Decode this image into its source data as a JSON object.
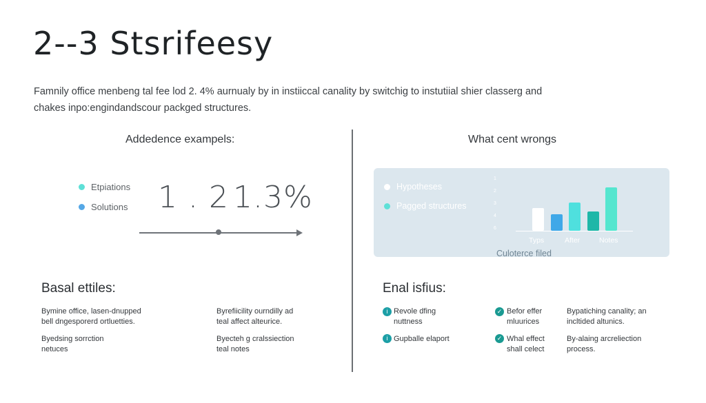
{
  "header": {
    "title": "2--3 Stsrifeesy",
    "subtitle": "Famnily office menbeng tal fee lod 2. 4% aurnualy by in instiiccal canality by switchig to instutiial shier classerg and chakes inpo:engindandscour packged structures."
  },
  "left": {
    "heading": "Addedence exampels:",
    "legend": [
      {
        "label": "Etpiations",
        "color": "#5ee0d7"
      },
      {
        "label": "Solutions",
        "color": "#55a8e6"
      }
    ],
    "values": [
      "1 . 2",
      "1.3%"
    ]
  },
  "right": {
    "heading": "What cent wrongs",
    "chart_data": {
      "type": "bar",
      "legend": [
        {
          "label": "Hypotheses",
          "color": "#ffffff"
        },
        {
          "label": "Pagged structures",
          "color": "#5ee0d7"
        }
      ],
      "y_ticks": [
        "1",
        "2",
        "3",
        "4",
        "6"
      ],
      "categories": [
        "Typs",
        "After",
        "Notes"
      ],
      "bars": [
        {
          "value": 1.8,
          "color": "#ffffff"
        },
        {
          "value": 1.3,
          "color": "#3fa8e8"
        },
        {
          "value": 2.2,
          "color": "#4fe0de"
        },
        {
          "value": 1.5,
          "color": "#1fb7a8"
        },
        {
          "value": 3.4,
          "color": "#55e6cf"
        }
      ],
      "ylim": [
        0,
        3.8
      ],
      "caption": "Culoterce filed"
    }
  },
  "bottom_left": {
    "heading": "Basal ettiles:",
    "items": [
      "Bymine office, lasen-dnupped\nbell dngesporerd ortluetties.",
      "Byrefiicility ourndilly ad\nteal affect alteurice.",
      "Byedsing sorrction\nnetuces",
      "Byecteh g cralssiection\nteal notes"
    ]
  },
  "bottom_right": {
    "heading": "Enal isfius:",
    "items": [
      {
        "text": "Revole dfing\nnuttness",
        "icon": "info-icon"
      },
      {
        "text": "Befor effer\nmluurices",
        "icon": "check-icon"
      },
      {
        "text": "Bypatiching canality; an\nincltided altunics.",
        "icon": ""
      },
      {
        "text": "Gupballe elaport",
        "icon": "info-icon"
      },
      {
        "text": "Whal effect\nshall celect",
        "icon": "check-icon"
      },
      {
        "text": "By-alaing arcreliection\nprocess.",
        "icon": ""
      }
    ]
  }
}
